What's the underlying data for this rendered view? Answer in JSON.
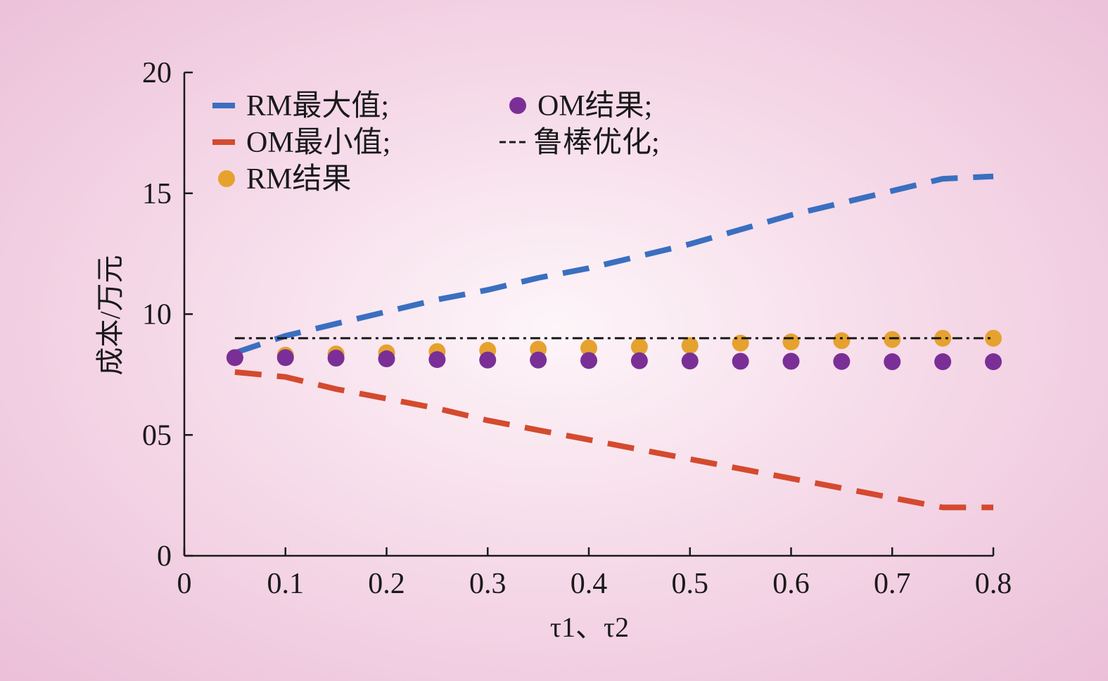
{
  "chart_data": {
    "type": "line",
    "xlabel": "τ1、τ2",
    "ylabel": "成本/万元",
    "xlim": [
      0,
      0.8
    ],
    "ylim": [
      0,
      20
    ],
    "xticks": [
      0,
      0.1,
      0.2,
      0.3,
      0.4,
      0.5,
      0.6,
      0.7,
      0.8
    ],
    "xtick_labels": [
      "0",
      "0.1",
      "0.2",
      "0.3",
      "0.4",
      "0.5",
      "0.6",
      "0.7",
      "0.8"
    ],
    "yticks": [
      0,
      5,
      10,
      15,
      20
    ],
    "ytick_labels": [
      "0",
      "05",
      "10",
      "15",
      "20"
    ],
    "grid": false,
    "legend_position": "top-left",
    "x": [
      0.05,
      0.1,
      0.15,
      0.2,
      0.25,
      0.3,
      0.35,
      0.4,
      0.45,
      0.5,
      0.55,
      0.6,
      0.65,
      0.7,
      0.75,
      0.8
    ],
    "series": [
      {
        "name": "RM最大值;",
        "legend_label": "RM最大值;",
        "style": "dashed",
        "color": "#3a6fc0",
        "values": [
          8.4,
          9.1,
          9.6,
          10.1,
          10.6,
          11.0,
          11.5,
          11.9,
          12.4,
          12.9,
          13.5,
          14.1,
          14.6,
          15.1,
          15.6,
          15.7
        ]
      },
      {
        "name": "OM最小值;",
        "legend_label": "OM最小值;",
        "style": "dashed",
        "color": "#d44a2e",
        "values": [
          7.6,
          7.4,
          6.9,
          6.5,
          6.1,
          5.6,
          5.2,
          4.8,
          4.4,
          4.0,
          3.6,
          3.2,
          2.8,
          2.4,
          2.0,
          2.0
        ]
      },
      {
        "name": "RM结果",
        "legend_label": "RM结果",
        "style": "markers",
        "color": "#e6a22e",
        "values": [
          8.2,
          8.3,
          8.35,
          8.4,
          8.45,
          8.5,
          8.55,
          8.6,
          8.65,
          8.7,
          8.8,
          8.85,
          8.9,
          8.95,
          9.0,
          9.0
        ]
      },
      {
        "name": "OM结果;",
        "legend_label": "OM结果;",
        "style": "markers",
        "color": "#7a2f96",
        "values": [
          8.2,
          8.2,
          8.18,
          8.15,
          8.12,
          8.1,
          8.1,
          8.08,
          8.07,
          8.06,
          8.05,
          8.05,
          8.04,
          8.03,
          8.03,
          8.03
        ]
      },
      {
        "name": "鲁棒优化;",
        "legend_label": "鲁棒优化;",
        "style": "dash-dot",
        "color": "#1a1a1a",
        "values": [
          9.0,
          9.0,
          9.0,
          9.0,
          9.0,
          9.0,
          9.0,
          9.0,
          9.0,
          9.0,
          9.0,
          9.0,
          9.0,
          9.0,
          9.0,
          9.0
        ]
      }
    ]
  }
}
